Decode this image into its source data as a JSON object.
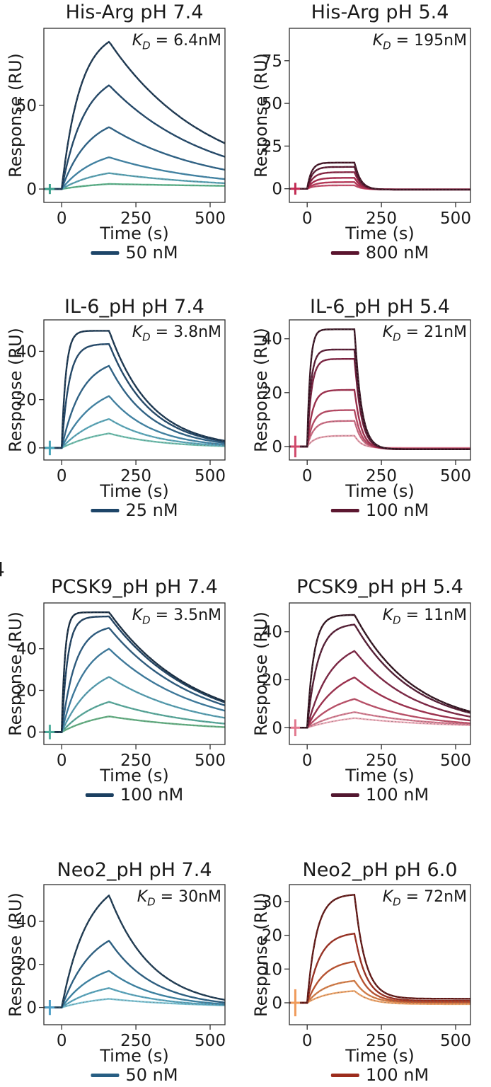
{
  "figure": {
    "background": "#ffffff",
    "text_color": "#1a1a1a",
    "axis_color": "#2f2f2f"
  },
  "edge_fragment": {
    "text": "4"
  },
  "chart_data": [
    {
      "type": "line",
      "title": "His-Arg pH 7.4",
      "kd": {
        "k": "K",
        "sub": "D",
        "rest": " = 6.4nM"
      },
      "ylabel": "Response (RU)",
      "xlabel": "Time (s)",
      "legend": {
        "label": "50 nM",
        "color": "#1d4568",
        "position": "below"
      },
      "axes": {
        "xlim": [
          -60,
          550
        ],
        "ylim": [
          -8,
          96
        ],
        "xticks": [
          0,
          250,
          500
        ],
        "yticks": [
          0,
          50
        ],
        "grid": false
      },
      "spike": {
        "t": -40,
        "amp": 3,
        "color": "#3aa08c"
      },
      "series": [
        {
          "peak": 88,
          "ka": 0.016,
          "koff": 0.003,
          "color": "#17344f"
        },
        {
          "peak": 62,
          "ka": 0.013,
          "koff": 0.003,
          "color": "#1d4568"
        },
        {
          "peak": 37,
          "ka": 0.011,
          "koff": 0.003,
          "color": "#2a6187"
        },
        {
          "peak": 19,
          "ka": 0.009,
          "koff": 0.003,
          "color": "#3f85a8"
        },
        {
          "peak": 9.5,
          "ka": 0.008,
          "koff": 0.0026,
          "color": "#57a3b5"
        },
        {
          "peak": 3,
          "ka": 0.006,
          "koff": 0.0012,
          "color": "#59b389"
        }
      ]
    },
    {
      "type": "line",
      "title": "His-Arg pH 5.4",
      "kd": {
        "k": "K",
        "sub": "D",
        "rest": " = 195nM"
      },
      "ylabel": "Response (RU)",
      "xlabel": "Time (s)",
      "legend": {
        "label": "800 nM",
        "color": "#5a142e",
        "position": "below"
      },
      "axes": {
        "xlim": [
          -60,
          550
        ],
        "ylim": [
          -8,
          94
        ],
        "xticks": [
          0,
          250,
          500
        ],
        "yticks": [
          0,
          25,
          50,
          75
        ],
        "grid": false
      },
      "spike": {
        "t": -40,
        "amp": 3.5,
        "color": "#c22a52"
      },
      "series": [
        {
          "peak": 15.3,
          "ka": 0.07,
          "koff": 0.05,
          "settle": -0.5,
          "color": "#400f21"
        },
        {
          "peak": 12.8,
          "ka": 0.06,
          "koff": 0.05,
          "settle": -0.5,
          "color": "#5a142e"
        },
        {
          "peak": 9.7,
          "ka": 0.05,
          "koff": 0.05,
          "settle": -0.5,
          "color": "#871e3e"
        },
        {
          "peak": 6.4,
          "ka": 0.045,
          "koff": 0.05,
          "settle": -0.4,
          "color": "#aa2449"
        },
        {
          "peak": 3.9,
          "ka": 0.04,
          "koff": 0.05,
          "settle": -0.4,
          "color": "#bb3456"
        },
        {
          "peak": 2.0,
          "ka": 0.04,
          "koff": 0.05,
          "settle": -0.3,
          "color": "#ca4e6d"
        }
      ]
    },
    {
      "type": "line",
      "title": "IL-6_pH pH 7.4",
      "kd": {
        "k": "K",
        "sub": "D",
        "rest": " = 3.8nM"
      },
      "ylabel": "Response (RU)",
      "xlabel": "Time (s)",
      "legend": {
        "label": "25 nM",
        "color": "#1d4568",
        "position": "below"
      },
      "axes": {
        "xlim": [
          -60,
          550
        ],
        "ylim": [
          -5,
          53
        ],
        "xticks": [
          0,
          250,
          500
        ],
        "yticks": [
          0,
          20,
          40
        ],
        "grid": false
      },
      "spike": {
        "t": -40,
        "amp": 3,
        "color": "#45a3b8"
      },
      "series": [
        {
          "peak": 48.5,
          "ka": 0.07,
          "koff": 0.0072,
          "color": "#16334e"
        },
        {
          "peak": 43,
          "ka": 0.04,
          "koff": 0.0072,
          "color": "#1d4568"
        },
        {
          "peak": 34,
          "ka": 0.015,
          "koff": 0.0072,
          "color": "#2a6187"
        },
        {
          "peak": 21.5,
          "ka": 0.0095,
          "koff": 0.007,
          "color": "#3f85a8"
        },
        {
          "peak": 12,
          "ka": 0.008,
          "koff": 0.0065,
          "color": "#5aa9bc"
        },
        {
          "peak": 6,
          "ka": 0.007,
          "koff": 0.0055,
          "color": "#6fc0b0"
        }
      ]
    },
    {
      "type": "line",
      "title": "IL-6_pH pH 5.4",
      "kd": {
        "k": "K",
        "sub": "D",
        "rest": " = 21nM"
      },
      "ylabel": "Response (RU)",
      "xlabel": "Time (s)",
      "legend": {
        "label": "100 nM",
        "color": "#5c1730",
        "position": "below"
      },
      "axes": {
        "xlim": [
          -60,
          550
        ],
        "ylim": [
          -5,
          47
        ],
        "xticks": [
          0,
          250,
          500
        ],
        "yticks": [
          0,
          20,
          40
        ],
        "grid": false
      },
      "spike": {
        "t": -40,
        "amp": 4,
        "color": "#d0496b"
      },
      "series": [
        {
          "peak": 43.5,
          "ka": 0.1,
          "koff": 0.045,
          "settle": -1,
          "color": "#36101f"
        },
        {
          "peak": 36,
          "ka": 0.08,
          "koff": 0.045,
          "settle": -1,
          "color": "#571731"
        },
        {
          "peak": 32.5,
          "ka": 0.07,
          "koff": 0.045,
          "settle": -1,
          "color": "#7d1f3f"
        },
        {
          "peak": 21,
          "ka": 0.055,
          "koff": 0.045,
          "settle": -1,
          "color": "#a02a4a"
        },
        {
          "peak": 13.5,
          "ka": 0.05,
          "koff": 0.045,
          "settle": -0.8,
          "color": "#bc4763"
        },
        {
          "peak": 9.5,
          "ka": 0.045,
          "koff": 0.045,
          "settle": -0.7,
          "color": "#d06e85"
        },
        {
          "peak": 4,
          "ka": 0.04,
          "koff": 0.045,
          "settle": -0.5,
          "color": "#e59cab"
        }
      ]
    },
    {
      "type": "line",
      "title": "PCSK9_pH pH 7.4",
      "kd": {
        "k": "K",
        "sub": "D",
        "rest": " = 3.5nM"
      },
      "ylabel": "Response (RU)",
      "xlabel": "Time (s)",
      "legend": {
        "label": "100 nM",
        "color": "#1b3f60",
        "position": "below"
      },
      "axes": {
        "xlim": [
          -60,
          550
        ],
        "ylim": [
          -6,
          62
        ],
        "xticks": [
          0,
          250,
          500
        ],
        "yticks": [
          0,
          20,
          40
        ],
        "grid": false
      },
      "spike": {
        "t": -40,
        "amp": 3.5,
        "color": "#4fae9c"
      },
      "series": [
        {
          "peak": 57.5,
          "ka": 0.09,
          "koff": 0.0035,
          "color": "#13293f"
        },
        {
          "peak": 55.5,
          "ka": 0.05,
          "koff": 0.0035,
          "color": "#1b3f60"
        },
        {
          "peak": 50,
          "ka": 0.022,
          "koff": 0.0035,
          "color": "#27597f"
        },
        {
          "peak": 40,
          "ka": 0.013,
          "koff": 0.0035,
          "color": "#3a7ba0"
        },
        {
          "peak": 26.5,
          "ka": 0.0095,
          "koff": 0.0035,
          "color": "#54a0b4"
        },
        {
          "peak": 14.5,
          "ka": 0.008,
          "koff": 0.0033,
          "color": "#57ab9d"
        },
        {
          "peak": 7.5,
          "ka": 0.007,
          "koff": 0.003,
          "color": "#63b183"
        }
      ]
    },
    {
      "type": "line",
      "title": "PCSK9_pH pH 5.4",
      "kd": {
        "k": "K",
        "sub": "D",
        "rest": " = 11nM"
      },
      "ylabel": "Response (RU)",
      "xlabel": "Time (s)",
      "legend": {
        "label": "100 nM",
        "color": "#521730",
        "position": "below"
      },
      "axes": {
        "xlim": [
          -60,
          550
        ],
        "ylim": [
          -7,
          52
        ],
        "xticks": [
          0,
          250,
          500
        ],
        "yticks": [
          0,
          20,
          40
        ],
        "grid": false
      },
      "spike": {
        "t": -40,
        "amp": 3.5,
        "color": "#e2798f"
      },
      "series": [
        {
          "peak": 47,
          "ka": 0.045,
          "koff": 0.005,
          "color": "#2e0f1b"
        },
        {
          "peak": 43,
          "ka": 0.028,
          "koff": 0.005,
          "color": "#521730"
        },
        {
          "peak": 32,
          "ka": 0.013,
          "koff": 0.005,
          "color": "#7c2040"
        },
        {
          "peak": 21,
          "ka": 0.01,
          "koff": 0.005,
          "color": "#a02a4a"
        },
        {
          "peak": 12,
          "ka": 0.009,
          "koff": 0.0048,
          "color": "#c14f69"
        },
        {
          "peak": 6.5,
          "ka": 0.007,
          "koff": 0.004,
          "color": "#d87d92"
        },
        {
          "peak": 4,
          "ka": 0.006,
          "koff": 0.0035,
          "color": "#efb0bd"
        }
      ]
    },
    {
      "type": "line",
      "title": "Neo2_pH pH 7.4",
      "kd": {
        "k": "K",
        "sub": "D",
        "rest": " = 30nM"
      },
      "ylabel": "Response (RU)",
      "xlabel": "Time (s)",
      "legend": {
        "label": "50 nM",
        "color": "#275e83",
        "position": "below"
      },
      "axes": {
        "xlim": [
          -60,
          550
        ],
        "ylim": [
          -8,
          57
        ],
        "xticks": [
          0,
          250,
          500
        ],
        "yticks": [
          0,
          20,
          40
        ],
        "grid": false
      },
      "spike": {
        "t": -40,
        "amp": 3.5,
        "color": "#4d9fc7"
      },
      "series": [
        {
          "peak": 52,
          "ka": 0.0115,
          "koff": 0.0069,
          "color": "#18364f"
        },
        {
          "peak": 31,
          "ka": 0.01,
          "koff": 0.0067,
          "color": "#275e83"
        },
        {
          "peak": 17,
          "ka": 0.009,
          "koff": 0.0062,
          "color": "#3a84a6"
        },
        {
          "peak": 9,
          "ka": 0.008,
          "koff": 0.0055,
          "color": "#58a7c0"
        },
        {
          "peak": 4,
          "ka": 0.007,
          "koff": 0.0036,
          "color": "#7cc3d4"
        }
      ]
    },
    {
      "type": "line",
      "title": "Neo2_pH pH 6.0",
      "kd": {
        "k": "K",
        "sub": "D",
        "rest": " = 72nM"
      },
      "ylabel": "Response (RU)",
      "xlabel": "Time (s)",
      "legend": {
        "label": "100 nM",
        "color": "#9c2c1d",
        "position": "below"
      },
      "axes": {
        "xlim": [
          -60,
          550
        ],
        "ylim": [
          -6.5,
          35
        ],
        "xticks": [
          0,
          250,
          500
        ],
        "yticks": [
          0,
          10,
          20,
          30
        ],
        "grid": false
      },
      "spike": {
        "t": -40,
        "amp": 4,
        "color": "#ef9a5a"
      },
      "series": [
        {
          "peak": 32,
          "ka": 0.032,
          "koff": 0.028,
          "settle": 1.2,
          "color": "#5f1311"
        },
        {
          "peak": 20.5,
          "ka": 0.024,
          "koff": 0.026,
          "settle": 0.6,
          "color": "#9c2c1d"
        },
        {
          "peak": 12.2,
          "ka": 0.018,
          "koff": 0.024,
          "settle": 0.2,
          "color": "#c0512c"
        },
        {
          "peak": 6.5,
          "ka": 0.016,
          "koff": 0.022,
          "settle": 0,
          "color": "#d97e46"
        },
        {
          "peak": 3.5,
          "ka": 0.014,
          "koff": 0.02,
          "settle": -0.4,
          "color": "#f0a468"
        }
      ]
    }
  ]
}
